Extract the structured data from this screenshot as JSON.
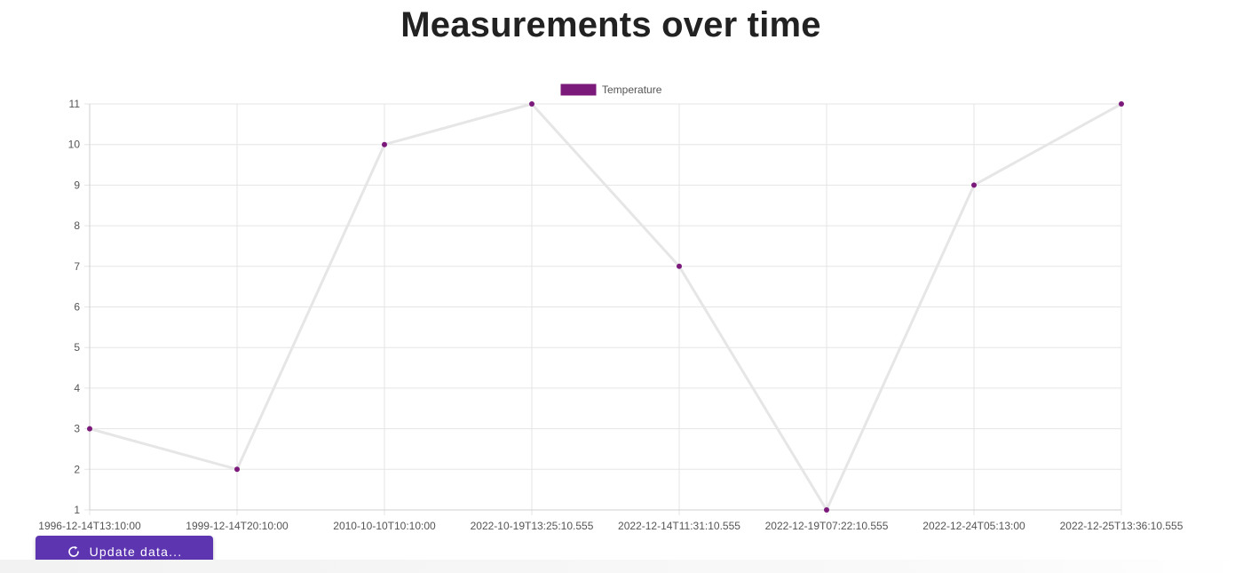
{
  "page": {
    "title": "Measurements over time"
  },
  "update_button": {
    "label": "Update data...",
    "icon": "refresh-icon",
    "color": "#5e35b1"
  },
  "chart_data": {
    "type": "line",
    "title": "",
    "xlabel": "",
    "ylabel": "",
    "x": [
      "1996-12-14T13:10:00",
      "1999-12-14T20:10:00",
      "2010-10-10T10:10:00",
      "2022-10-19T13:25:10.555",
      "2022-12-14T11:31:10.555",
      "2022-12-19T07:22:10.555",
      "2022-12-24T05:13:00",
      "2022-12-25T13:36:10.555"
    ],
    "series": [
      {
        "name": "Temperature",
        "values": [
          3,
          2,
          10,
          11,
          7,
          1,
          9,
          11
        ],
        "point_color": "#7b1a7b",
        "line_color": "#e6e6e6"
      }
    ],
    "ylim": [
      1,
      11
    ],
    "yticks": [
      1,
      2,
      3,
      4,
      5,
      6,
      7,
      8,
      9,
      10,
      11
    ],
    "grid": true,
    "legend_position": "top-center"
  }
}
